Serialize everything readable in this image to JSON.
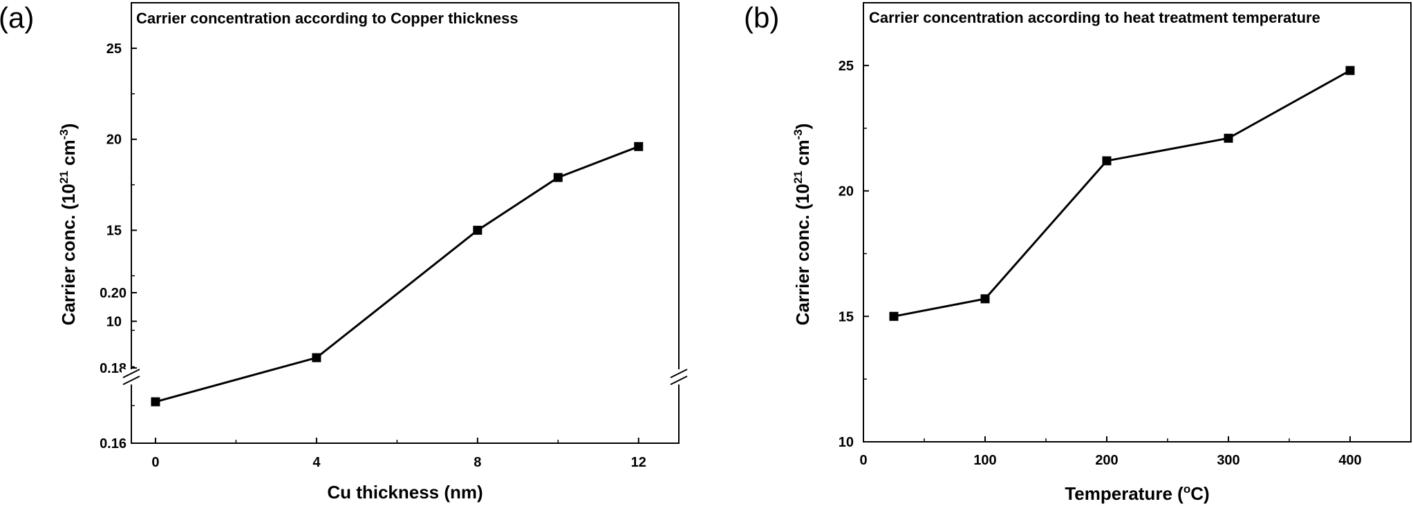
{
  "panels": [
    {
      "letter": "(a)"
    },
    {
      "letter": "(b)"
    }
  ],
  "chart_data": [
    {
      "type": "line",
      "title": "Carrier concentration according to Copper thickness",
      "xlabel": "Cu thickness (nm)",
      "ylabel": {
        "main": "Carrier conc. (10",
        "exp": "21",
        "unit": " cm",
        "unit_exp": "-3",
        "close": ")"
      },
      "x_ticks": [
        "0",
        "4",
        "8",
        "12"
      ],
      "x_tick_values": [
        0,
        4,
        8,
        12
      ],
      "xlim": [
        -0.6,
        13
      ],
      "y_broken_axis": true,
      "y_lower_segment": {
        "ylim": [
          0.16,
          0.2
        ],
        "ticks": [
          "0.16",
          "0.18",
          "0.20"
        ],
        "tick_values": [
          0.16,
          0.18,
          0.2
        ]
      },
      "y_upper_segment": {
        "ylim": [
          7,
          27.5
        ],
        "ticks": [
          "10",
          "15",
          "20",
          "25"
        ],
        "tick_values": [
          10,
          15,
          20,
          25
        ]
      },
      "series": [
        {
          "x": [
            0,
            4,
            8,
            10,
            12
          ],
          "y": [
            0.171,
            8.0,
            15.0,
            17.9,
            19.6
          ]
        }
      ],
      "grid": false,
      "marker": "square"
    },
    {
      "type": "line",
      "title": "Carrier concentration according to heat treatment temperature",
      "xlabel": {
        "main": "Temperature (",
        "exp": "o",
        "unit": "C)"
      },
      "ylabel": {
        "main": "Carrier conc. (10",
        "exp": "21",
        "unit": " cm",
        "unit_exp": "-3",
        "close": ")"
      },
      "x_ticks": [
        "0",
        "100",
        "200",
        "300",
        "400"
      ],
      "x_tick_values": [
        0,
        100,
        200,
        300,
        400
      ],
      "xlim": [
        0,
        450
      ],
      "y_ticks": [
        "10",
        "15",
        "20",
        "25"
      ],
      "y_tick_values": [
        10,
        15,
        20,
        25
      ],
      "ylim": [
        10,
        27.5
      ],
      "series": [
        {
          "x": [
            25,
            100,
            200,
            300,
            400
          ],
          "y": [
            15.0,
            15.7,
            21.2,
            22.1,
            24.8
          ]
        }
      ],
      "grid": false,
      "marker": "square"
    }
  ]
}
